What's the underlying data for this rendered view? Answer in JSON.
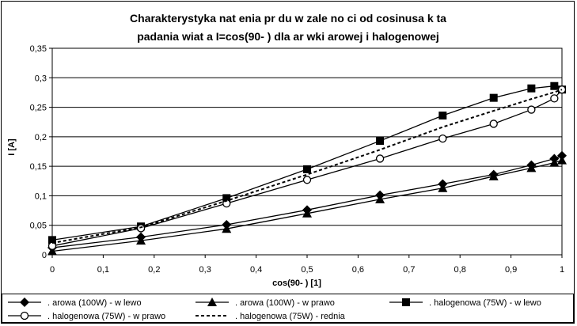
{
  "chart_data": {
    "type": "line",
    "title_line1": "Charakterystyka nat   enia pr  du w zale  no  ci od cosinusa k  ta",
    "title_line2": "padania   wiat a I=cos(90-   ) dla   ar  wki   arowej i halogenowej",
    "xlabel": "cos(90-    ) [1]",
    "ylabel": "I [A]",
    "xlim": [
      0,
      1
    ],
    "ylim": [
      0,
      0.35
    ],
    "x_ticks": [
      "0",
      "0,1",
      "0,2",
      "0,3",
      "0,4",
      "0,5",
      "0,6",
      "0,7",
      "0,8",
      "0,9",
      "1"
    ],
    "y_ticks": [
      "0",
      "0,05",
      "0,1",
      "0,15",
      "0,2",
      "0,25",
      "0,3",
      "0,35"
    ],
    "grid": "horizontal",
    "legend_position": "bottom",
    "series": [
      {
        "name": ".   arowa (100W) - w lewo",
        "marker": "diamond",
        "line": "solid",
        "x": [
          0,
          0.174,
          0.342,
          0.5,
          0.643,
          0.766,
          0.866,
          0.94,
          0.985,
          1
        ],
        "y": [
          0.012,
          0.03,
          0.051,
          0.076,
          0.101,
          0.12,
          0.136,
          0.152,
          0.163,
          0.168
        ]
      },
      {
        "name": ".   arowa (100W) - w prawo",
        "marker": "triangle",
        "line": "solid",
        "x": [
          0,
          0.174,
          0.342,
          0.5,
          0.643,
          0.766,
          0.866,
          0.94,
          0.985,
          1
        ],
        "y": [
          0.006,
          0.024,
          0.044,
          0.07,
          0.094,
          0.113,
          0.133,
          0.147,
          0.156,
          0.16
        ]
      },
      {
        "name": ". halogenowa (75W) - w lewo",
        "marker": "square",
        "line": "solid",
        "x": [
          0,
          0.174,
          0.342,
          0.5,
          0.643,
          0.766,
          0.866,
          0.94,
          0.985,
          1
        ],
        "y": [
          0.025,
          0.048,
          0.096,
          0.145,
          0.193,
          0.236,
          0.266,
          0.282,
          0.286,
          0.28
        ]
      },
      {
        "name": ". halogenowa (75W) - w prawo",
        "marker": "circle",
        "line": "solid",
        "x": [
          0,
          0.174,
          0.342,
          0.5,
          0.643,
          0.766,
          0.866,
          0.94,
          0.985,
          1
        ],
        "y": [
          0.015,
          0.045,
          0.087,
          0.127,
          0.163,
          0.197,
          0.222,
          0.246,
          0.265,
          0.28
        ]
      },
      {
        "name": ". halogenowa (75W) -    rednia",
        "marker": "none",
        "line": "dashed",
        "x": [
          0,
          0.174,
          0.342,
          0.5,
          0.643,
          0.766,
          0.866,
          0.94,
          0.985,
          1
        ],
        "y": [
          0.02,
          0.0465,
          0.0915,
          0.136,
          0.178,
          0.2165,
          0.244,
          0.264,
          0.2755,
          0.28
        ]
      }
    ]
  }
}
